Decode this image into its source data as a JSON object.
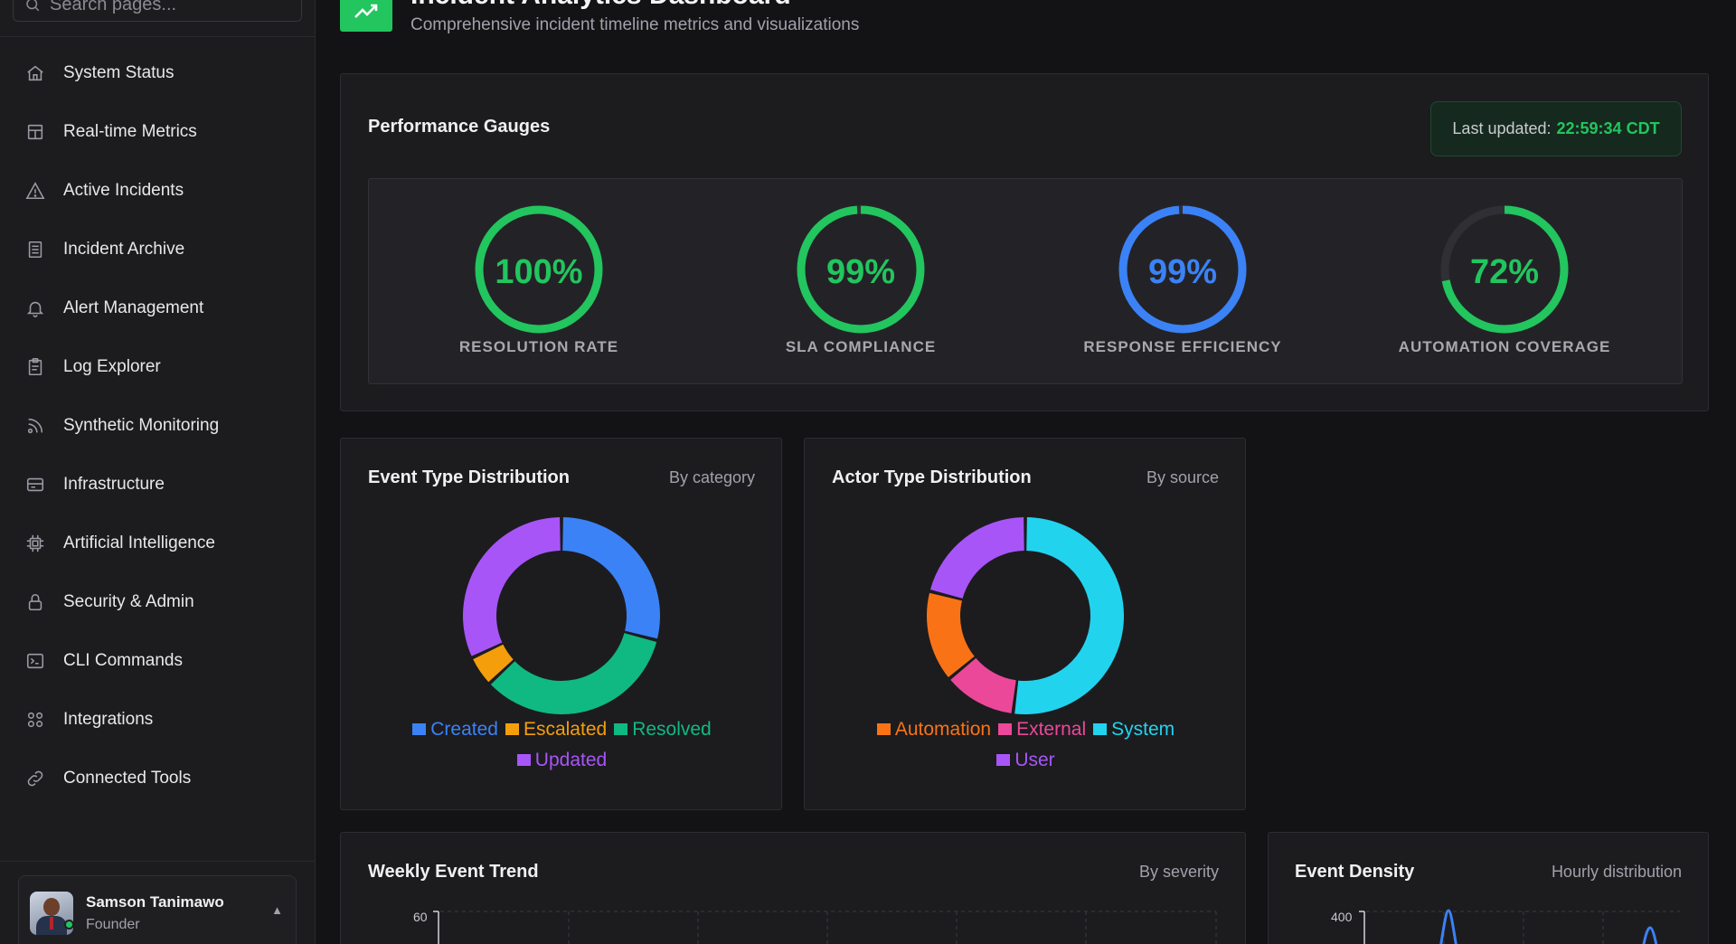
{
  "sidebar": {
    "search_placeholder": "Search pages...",
    "items": [
      {
        "label": "System Status",
        "icon": "home-icon"
      },
      {
        "label": "Real-time Metrics",
        "icon": "layout-icon"
      },
      {
        "label": "Active Incidents",
        "icon": "alert-triangle-icon"
      },
      {
        "label": "Incident Archive",
        "icon": "archive-icon"
      },
      {
        "label": "Alert Management",
        "icon": "bell-icon"
      },
      {
        "label": "Log Explorer",
        "icon": "clipboard-icon"
      },
      {
        "label": "Synthetic Monitoring",
        "icon": "satellite-icon"
      },
      {
        "label": "Infrastructure",
        "icon": "server-icon"
      },
      {
        "label": "Artificial Intelligence",
        "icon": "cpu-icon"
      },
      {
        "label": "Security & Admin",
        "icon": "lock-icon"
      },
      {
        "label": "CLI Commands",
        "icon": "terminal-icon"
      },
      {
        "label": "Integrations",
        "icon": "grid-icon"
      },
      {
        "label": "Connected Tools",
        "icon": "link-icon"
      }
    ],
    "user": {
      "name": "Samson Tanimawo",
      "role": "Founder"
    }
  },
  "header": {
    "title": "Incident Analytics Dashboard",
    "subtitle": "Comprehensive incident timeline metrics and visualizations"
  },
  "gauges": {
    "title": "Performance Gauges",
    "updated_label": "Last updated:",
    "updated_time": "22:59:34 CDT",
    "items": [
      {
        "label": "RESOLUTION RATE",
        "value": 100,
        "display": "100%",
        "color": "#22c55e"
      },
      {
        "label": "SLA COMPLIANCE",
        "value": 99,
        "display": "99%",
        "color": "#22c55e"
      },
      {
        "label": "RESPONSE EFFICIENCY",
        "value": 99,
        "display": "99%",
        "color": "#3b82f6"
      },
      {
        "label": "AUTOMATION COVERAGE",
        "value": 72,
        "display": "72%",
        "color": "#22c55e"
      }
    ]
  },
  "event_type": {
    "title": "Event Type Distribution",
    "meta": "By category",
    "chart_data": {
      "type": "pie",
      "categories": [
        "Created",
        "Escalated",
        "Resolved",
        "Updated"
      ],
      "values": [
        29,
        5,
        34,
        32
      ],
      "order": [
        "Created",
        "Resolved",
        "Escalated",
        "Updated"
      ],
      "colors": {
        "Created": "#3b82f6",
        "Escalated": "#f59e0b",
        "Resolved": "#10b981",
        "Updated": "#a855f7"
      }
    }
  },
  "actor_type": {
    "title": "Actor Type Distribution",
    "meta": "By source",
    "chart_data": {
      "type": "pie",
      "categories": [
        "Automation",
        "External",
        "System",
        "User"
      ],
      "values": [
        15,
        12,
        52,
        21
      ],
      "order": [
        "System",
        "External",
        "Automation",
        "User"
      ],
      "colors": {
        "Automation": "#f97316",
        "External": "#ec4899",
        "System": "#22d3ee",
        "User": "#a855f7"
      }
    }
  },
  "weekly_trend": {
    "title": "Weekly Event Trend",
    "meta": "By severity",
    "y_tick_top": "60"
  },
  "event_density": {
    "title": "Event Density",
    "meta": "Hourly distribution",
    "y_tick_top": "400"
  }
}
